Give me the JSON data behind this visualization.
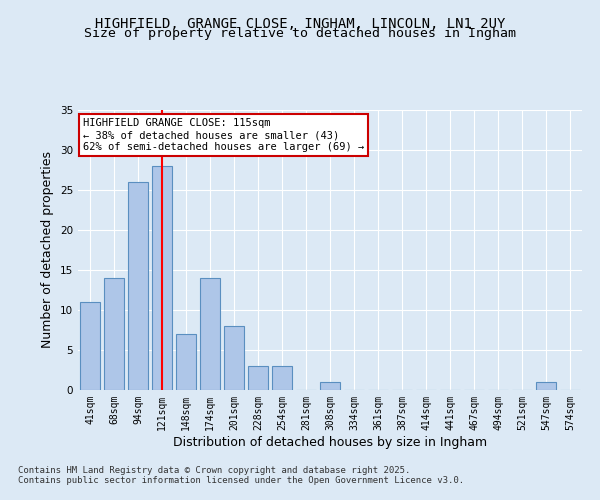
{
  "title1": "HIGHFIELD, GRANGE CLOSE, INGHAM, LINCOLN, LN1 2UY",
  "title2": "Size of property relative to detached houses in Ingham",
  "xlabel": "Distribution of detached houses by size in Ingham",
  "ylabel": "Number of detached properties",
  "bar_labels": [
    "41sqm",
    "68sqm",
    "94sqm",
    "121sqm",
    "148sqm",
    "174sqm",
    "201sqm",
    "228sqm",
    "254sqm",
    "281sqm",
    "308sqm",
    "334sqm",
    "361sqm",
    "387sqm",
    "414sqm",
    "441sqm",
    "467sqm",
    "494sqm",
    "521sqm",
    "547sqm",
    "574sqm"
  ],
  "bar_values": [
    11,
    14,
    26,
    28,
    7,
    14,
    8,
    3,
    3,
    0,
    1,
    0,
    0,
    0,
    0,
    0,
    0,
    0,
    0,
    1,
    0
  ],
  "bar_color": "#aec6e8",
  "bar_edgecolor": "#5a8fc0",
  "bar_linewidth": 0.8,
  "redline_x": 3.0,
  "annotation_text": "HIGHFIELD GRANGE CLOSE: 115sqm\n← 38% of detached houses are smaller (43)\n62% of semi-detached houses are larger (69) →",
  "annotation_box_color": "#ffffff",
  "annotation_box_edgecolor": "#cc0000",
  "footnote": "Contains HM Land Registry data © Crown copyright and database right 2025.\nContains public sector information licensed under the Open Government Licence v3.0.",
  "ylim": [
    0,
    35
  ],
  "yticks": [
    0,
    5,
    10,
    15,
    20,
    25,
    30,
    35
  ],
  "bg_color": "#dce9f5",
  "plot_bg_color": "#dce9f5",
  "grid_color": "#ffffff",
  "title_fontsize": 10,
  "axis_label_fontsize": 9,
  "tick_fontsize": 7,
  "annot_fontsize": 7.5
}
